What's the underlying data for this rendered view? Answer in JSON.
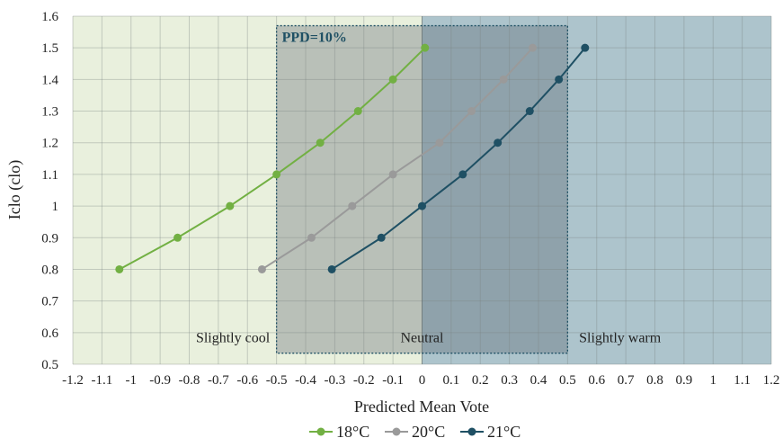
{
  "chart_data": {
    "type": "line",
    "title": "",
    "xlabel": "Predicted Mean Vote",
    "ylabel": "Iclo (clo)",
    "xlim": [
      -1.2,
      1.2
    ],
    "ylim": [
      0.5,
      1.6
    ],
    "x_ticks": [
      -1.2,
      -1.1,
      -1,
      -0.9,
      -0.8,
      -0.7,
      -0.6,
      -0.5,
      -0.4,
      -0.3,
      -0.2,
      -0.1,
      0,
      0.1,
      0.2,
      0.3,
      0.4,
      0.5,
      0.6,
      0.7,
      0.8,
      0.9,
      1,
      1.1,
      1.2
    ],
    "x_tick_labels": [
      "-1.2",
      "-1.1",
      "-1",
      "-0.9",
      "-0.8",
      "-0.7",
      "-0.6",
      "-0.5",
      "-0.4",
      "-0.3",
      "-0.2",
      "-0.1",
      "0",
      "0.1",
      "0.2",
      "0.3",
      "0.4",
      "0.5",
      "0.6",
      "0.7",
      "0.8",
      "0.9",
      "1",
      "1.1",
      "1.2"
    ],
    "y_ticks": [
      0.5,
      0.6,
      0.7,
      0.8,
      0.9,
      1.0,
      1.1,
      1.2,
      1.3,
      1.4,
      1.5,
      1.6
    ],
    "y_tick_labels": [
      "0.5",
      "0.6",
      "0.7",
      "0.8",
      "0.9",
      "1",
      "1.1",
      "1.2",
      "1.3",
      "1.4",
      "1.5",
      "1.6"
    ],
    "grid": true,
    "legend_position": "bottom",
    "regions": [
      {
        "label": "Slightly cool",
        "x_range": [
          -1.2,
          0
        ],
        "color": "#e9f0dd"
      },
      {
        "label": "Neutral",
        "x_range": [
          -0.5,
          0.5
        ],
        "color": "#b9c0b8"
      },
      {
        "label": "Slightly warm",
        "x_range": [
          0,
          1.2
        ],
        "color": "#adc4cc"
      }
    ],
    "ppd_box": {
      "label": "PPD=10%",
      "x_range": [
        -0.5,
        0.5
      ],
      "y_range": [
        0.535,
        1.57
      ],
      "color": "#1f5064"
    },
    "series": [
      {
        "name": "18°C",
        "color": "#72b043",
        "x": [
          -1.04,
          -0.84,
          -0.66,
          -0.5,
          -0.35,
          -0.22,
          -0.1,
          0.01
        ],
        "y": [
          0.8,
          0.9,
          1.0,
          1.1,
          1.2,
          1.3,
          1.4,
          1.5
        ]
      },
      {
        "name": "20°C",
        "color": "#9a9a9a",
        "x": [
          -0.55,
          -0.38,
          -0.24,
          -0.1,
          0.06,
          0.17,
          0.28,
          0.38
        ],
        "y": [
          0.8,
          0.9,
          1.0,
          1.1,
          1.2,
          1.3,
          1.4,
          1.5
        ]
      },
      {
        "name": "21°C",
        "color": "#1f5064",
        "x": [
          -0.31,
          -0.14,
          0.0,
          0.14,
          0.26,
          0.37,
          0.47,
          0.56
        ],
        "y": [
          0.8,
          0.9,
          1.0,
          1.1,
          1.2,
          1.3,
          1.4,
          1.5
        ]
      }
    ]
  }
}
